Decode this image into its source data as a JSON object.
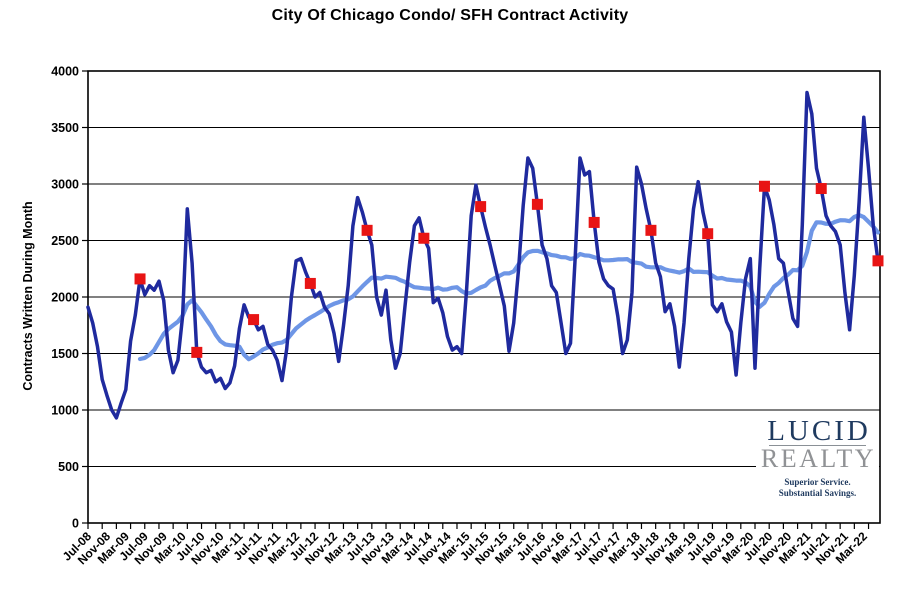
{
  "chart_data": {
    "type": "line",
    "title": "City Of Chicago Condo/ SFH Contract Activity",
    "ylabel": "Contracts Written During Month",
    "ylim": [
      0,
      4000
    ],
    "ytick_step": 500,
    "ytick_labels": [
      "0",
      "500",
      "1000",
      "1500",
      "2000",
      "2500",
      "3000",
      "3500",
      "4000"
    ],
    "xtick_labels": [
      "Jul-08",
      "Nov-08",
      "Mar-09",
      "Jul-09",
      "Nov-09",
      "Mar-10",
      "Jul-10",
      "Nov-10",
      "Mar-11",
      "Jul-11",
      "Nov-11",
      "Mar-12",
      "Jul-12",
      "Nov-12",
      "Mar-13",
      "Jul-13",
      "Nov-13",
      "Mar-14",
      "Jul-14",
      "Nov-14",
      "Mar-15",
      "Jul-15",
      "Nov-15",
      "Mar-16",
      "Jul-16",
      "Nov-16",
      "Mar-17",
      "Jul-17",
      "Nov-17",
      "Mar-18",
      "Jul-18",
      "Nov-18",
      "Mar-19",
      "Jul-19",
      "Nov-19",
      "Mar-20",
      "Jul-20",
      "Nov-20",
      "Mar-21",
      "Jul-21",
      "Nov-21",
      "Mar-22"
    ],
    "x_months_start": "Jul-08",
    "x_months_end": "Jun-22",
    "x_label_every_n_months": 4,
    "x_tick_every_n_months": 3,
    "grid": true,
    "legend": false,
    "series": [
      {
        "name": "monthly-contracts",
        "color": "#1F2A9E",
        "values": [
          1910,
          1770,
          1560,
          1270,
          1130,
          1000,
          930,
          1060,
          1180,
          1610,
          1840,
          2160,
          2020,
          2100,
          2060,
          2140,
          1970,
          1530,
          1330,
          1440,
          1830,
          2780,
          2300,
          1510,
          1380,
          1330,
          1350,
          1250,
          1280,
          1190,
          1240,
          1390,
          1720,
          1930,
          1820,
          1800,
          1710,
          1740,
          1580,
          1530,
          1440,
          1260,
          1540,
          2000,
          2320,
          2340,
          2220,
          2120,
          2000,
          2040,
          1910,
          1850,
          1680,
          1430,
          1740,
          2100,
          2630,
          2880,
          2750,
          2590,
          2460,
          2000,
          1840,
          2060,
          1620,
          1370,
          1500,
          1910,
          2310,
          2630,
          2700,
          2520,
          2430,
          1950,
          1990,
          1860,
          1650,
          1530,
          1560,
          1500,
          2040,
          2720,
          2990,
          2800,
          2620,
          2460,
          2280,
          2100,
          1920,
          1520,
          1770,
          2240,
          2810,
          3230,
          3140,
          2820,
          2460,
          2340,
          2100,
          2040,
          1770,
          1500,
          1590,
          2350,
          3230,
          3080,
          3110,
          2660,
          2310,
          2160,
          2100,
          2070,
          1830,
          1500,
          1620,
          2040,
          3150,
          3000,
          2780,
          2590,
          2300,
          2180,
          1870,
          1940,
          1740,
          1380,
          1770,
          2340,
          2780,
          3020,
          2750,
          2560,
          1930,
          1870,
          1940,
          1780,
          1690,
          1310,
          1770,
          2160,
          2340,
          1370,
          2250,
          2980,
          2860,
          2640,
          2340,
          2300,
          2050,
          1810,
          1740,
          2640,
          3810,
          3620,
          3140,
          2960,
          2720,
          2630,
          2580,
          2460,
          2040,
          1710,
          2190,
          2840,
          3590,
          3140,
          2630,
          2320
        ]
      },
      {
        "name": "12-month-moving-average",
        "color": "#6E96E6",
        "derived_from": "trailing 12-month average of monthly-contracts"
      }
    ],
    "june_markers": {
      "color": "#E81414",
      "shape": "square",
      "month_indices": [
        11,
        23,
        35,
        47,
        59,
        71,
        83,
        95,
        107,
        119,
        131,
        143,
        155,
        167
      ],
      "values": [
        2160,
        1510,
        1800,
        2120,
        2590,
        2520,
        2800,
        2820,
        2660,
        2590,
        2560,
        2980,
        2960,
        2320
      ]
    }
  },
  "logo": {
    "word1": "LUCID",
    "word2": "REALTY",
    "tagline_line1": "Superior Service.",
    "tagline_line2": "Substantial Savings.",
    "navy": "#1F3A5F",
    "gray": "#909295"
  }
}
